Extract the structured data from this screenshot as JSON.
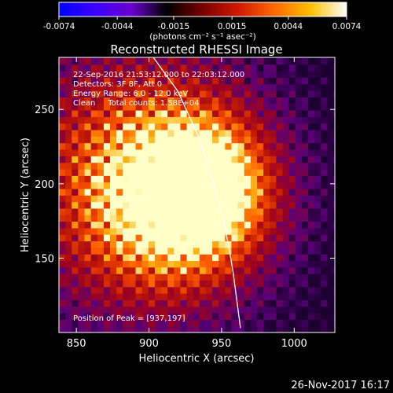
{
  "colorbar": {
    "ticks": [
      -0.0074,
      -0.0044,
      -0.0015,
      0.0015,
      0.0044,
      0.0074
    ],
    "tick_labels": [
      "-0.0074",
      "-0.0044",
      "-0.0015",
      "0.0015",
      "0.0044",
      "0.0074"
    ],
    "units_label": "(photons cm⁻² s⁻¹ asec⁻²)",
    "colors": [
      "#0000ff",
      "#3a00ff",
      "#6a00d0",
      "#000000",
      "#7a0000",
      "#d01a00",
      "#ff6a00",
      "#ffc000",
      "#ffffff"
    ]
  },
  "chart_data": {
    "type": "heatmap",
    "title": "Reconstructed RHESSI Image",
    "xlabel": "Heliocentric X (arcsec)",
    "ylabel": "Heliocentric Y (arcsec)",
    "xlim": [
      838,
      1028
    ],
    "ylim": [
      100,
      285
    ],
    "x_ticks": [
      850,
      900,
      950,
      1000
    ],
    "y_ticks": [
      150,
      200,
      250
    ],
    "annotations": [
      "22-Sep-2016 21:53:12.000 to 22:03:12.000",
      "Detectors: 3F 8F, Att 0",
      "Energy Range: 6.0 - 12.0 keV",
      "Clean     Total counts: 1.58E+04"
    ],
    "peak_label": "Position of Peak = [937,197]",
    "peak": [
      937,
      197
    ],
    "secondary_peak": [
      912,
      188
    ],
    "limb_curve": [
      [
        903,
        285
      ],
      [
        920,
        262
      ],
      [
        934,
        232
      ],
      [
        943,
        205
      ],
      [
        950,
        180
      ],
      [
        955,
        158
      ],
      [
        958,
        140
      ],
      [
        961,
        118
      ],
      [
        963,
        103
      ]
    ]
  },
  "footer": {
    "timestamp": "26-Nov-2017 16:17"
  }
}
